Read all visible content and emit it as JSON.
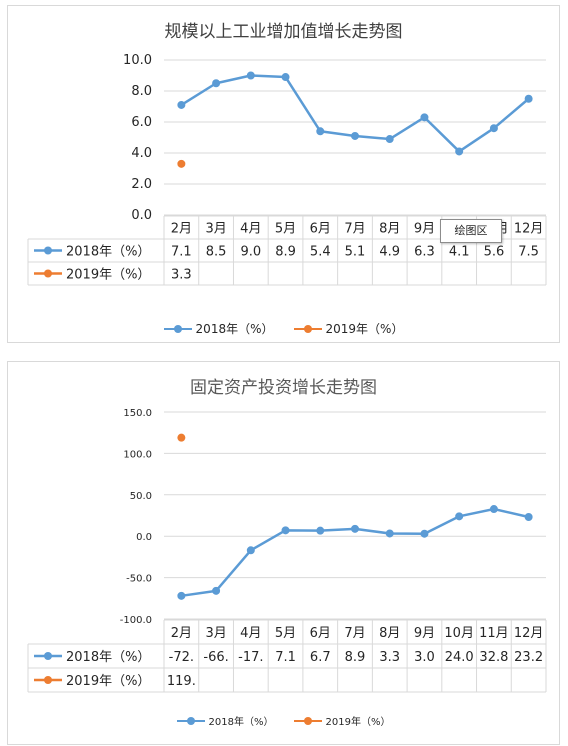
{
  "colors": {
    "series_2018": "#5b9bd5",
    "series_2019": "#ed7d31",
    "grid": "#d9d9d9",
    "text": "#262626"
  },
  "tooltip": {
    "text": "绘图区"
  },
  "chart_data": [
    {
      "type": "line",
      "title": "规模以上工业增加值增长走势图",
      "categories": [
        "2月",
        "3月",
        "4月",
        "5月",
        "6月",
        "7月",
        "8月",
        "9月",
        "10月",
        "11月",
        "12月"
      ],
      "series": [
        {
          "name": "2018年（%）",
          "values": [
            7.1,
            8.5,
            9.0,
            8.9,
            5.4,
            5.1,
            4.9,
            6.3,
            4.1,
            5.6,
            7.5
          ],
          "labels": [
            "7.1",
            "8.5",
            "9.0",
            "8.9",
            "5.4",
            "5.1",
            "4.9",
            "6.3",
            "4.1",
            "5.6",
            "7.5"
          ]
        },
        {
          "name": "2019年（%）",
          "values": [
            3.3,
            null,
            null,
            null,
            null,
            null,
            null,
            null,
            null,
            null,
            null
          ],
          "labels": [
            "3.3",
            "",
            "",
            "",
            "",
            "",
            "",
            "",
            "",
            "",
            ""
          ]
        }
      ],
      "ylim": [
        0,
        10
      ],
      "yticks": [
        "0.0",
        "2.0",
        "4.0",
        "6.0",
        "8.0",
        "10.0"
      ],
      "grid": true,
      "legend": "bottom",
      "data_table": true
    },
    {
      "type": "line",
      "title": "固定资产投资增长走势图",
      "categories": [
        "2月",
        "3月",
        "4月",
        "5月",
        "6月",
        "7月",
        "8月",
        "9月",
        "10月",
        "11月",
        "12月"
      ],
      "series": [
        {
          "name": "2018年（%）",
          "values": [
            -72,
            -66,
            -17,
            7.1,
            6.7,
            8.9,
            3.3,
            3.0,
            24.0,
            32.8,
            23.2
          ],
          "labels": [
            "-72.",
            "-66.",
            "-17.",
            "7.1",
            "6.7",
            "8.9",
            "3.3",
            "3.0",
            "24.0",
            "32.8",
            "23.2"
          ]
        },
        {
          "name": "2019年（%）",
          "values": [
            119,
            null,
            null,
            null,
            null,
            null,
            null,
            null,
            null,
            null,
            null
          ],
          "labels": [
            "119.",
            "",
            "",
            "",
            "",
            "",
            "",
            "",
            "",
            "",
            ""
          ]
        }
      ],
      "ylim": [
        -100,
        150
      ],
      "yticks": [
        "-100.0",
        "-50.0",
        "0.0",
        "50.0",
        "100.0",
        "150.0"
      ],
      "grid": true,
      "legend": "bottom",
      "data_table": true
    }
  ]
}
